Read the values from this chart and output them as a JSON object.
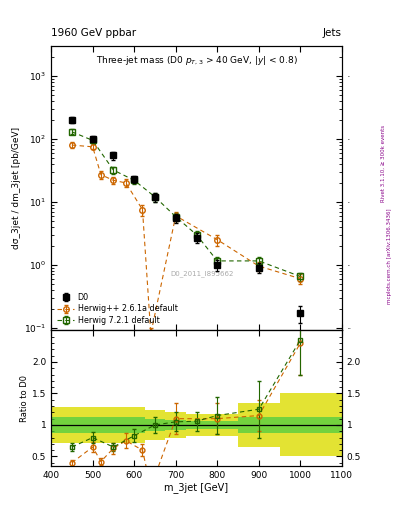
{
  "title_top": "1960 GeV ppbar",
  "title_top_right": "Jets",
  "plot_title": "Three-jet mass (D0 p_{T,3} > 40 GeV, |y| < 0.8)",
  "xlabel": "m_3jet [GeV]",
  "ylabel_main": "dσ_3jet / dm_3jet [pb/GeV]",
  "ylabel_ratio": "Ratio to D0",
  "watermark": "D0_2011_I895662",
  "right_label": "Rivet 3.1.10, ≥ 300k events",
  "right_label2": "mcplots.cern.ch [arXiv:1306.3436]",
  "d0_x": [
    450,
    500,
    550,
    600,
    650,
    700,
    750,
    800,
    900,
    1000
  ],
  "d0_y": [
    200,
    100,
    55,
    23,
    12,
    5.5,
    2.7,
    1.0,
    0.9,
    0.17
  ],
  "d0_yerr_lo": [
    20,
    10,
    8,
    3,
    2,
    0.9,
    0.5,
    0.2,
    0.15,
    0.05
  ],
  "d0_yerr_hi": [
    20,
    10,
    8,
    3,
    2,
    0.9,
    0.5,
    0.2,
    0.15,
    0.05
  ],
  "hw_x": [
    450,
    500,
    520,
    550,
    580,
    620,
    640,
    700,
    800,
    900,
    1000
  ],
  "hw_y": [
    80,
    75,
    27,
    22,
    20,
    7.5,
    0.08,
    6.0,
    2.5,
    0.95,
    0.6
  ],
  "hw_yerr_lo": [
    8,
    7,
    4,
    3,
    3,
    1.5,
    0.02,
    1.0,
    0.5,
    0.15,
    0.1
  ],
  "hw_yerr_hi": [
    8,
    7,
    4,
    3,
    3,
    1.5,
    0.02,
    1.0,
    0.5,
    0.15,
    0.1
  ],
  "hw7_x": [
    450,
    500,
    550,
    600,
    650,
    700,
    750,
    800,
    900,
    1000
  ],
  "hw7_y": [
    130,
    95,
    32,
    22,
    12,
    5.8,
    3.0,
    1.15,
    1.15,
    0.65
  ],
  "hw7_yerr_lo": [
    12,
    9,
    4,
    3,
    2,
    0.9,
    0.5,
    0.2,
    0.2,
    0.1
  ],
  "hw7_yerr_hi": [
    12,
    9,
    4,
    3,
    2,
    0.9,
    0.5,
    0.2,
    0.2,
    0.1
  ],
  "ratio_hw_x": [
    450,
    500,
    520,
    550,
    580,
    620,
    640,
    700,
    800,
    900,
    1000
  ],
  "ratio_hw_y": [
    0.4,
    0.65,
    0.42,
    0.63,
    0.75,
    0.6,
    0.007,
    1.1,
    1.1,
    1.15,
    2.3
  ],
  "ratio_hw_yerr_lo": [
    0.05,
    0.08,
    0.06,
    0.09,
    0.12,
    0.1,
    0.003,
    0.25,
    0.25,
    0.25,
    0.5
  ],
  "ratio_hw_yerr_hi": [
    0.05,
    0.08,
    0.06,
    0.09,
    0.12,
    0.1,
    0.003,
    0.25,
    0.25,
    0.25,
    0.5
  ],
  "ratio_hw7_x": [
    450,
    500,
    550,
    600,
    650,
    700,
    750,
    800,
    900,
    1000
  ],
  "ratio_hw7_y": [
    0.65,
    0.8,
    0.65,
    0.83,
    1.0,
    1.05,
    1.06,
    1.15,
    1.25,
    2.35
  ],
  "ratio_hw7_yerr_lo": [
    0.06,
    0.09,
    0.07,
    0.1,
    0.12,
    0.15,
    0.15,
    0.3,
    0.45,
    0.55
  ],
  "ratio_hw7_yerr_hi": [
    0.06,
    0.09,
    0.07,
    0.1,
    0.12,
    0.15,
    0.15,
    0.3,
    0.45,
    0.55
  ],
  "band_x_edges": [
    400,
    475,
    525,
    575,
    625,
    675,
    725,
    775,
    850,
    950,
    1100
  ],
  "band_green_lo": [
    0.88,
    0.88,
    0.88,
    0.88,
    0.9,
    0.92,
    0.93,
    0.93,
    0.88,
    0.88,
    0.88
  ],
  "band_green_hi": [
    1.12,
    1.12,
    1.12,
    1.12,
    1.1,
    1.08,
    1.07,
    1.07,
    1.12,
    1.12,
    1.12
  ],
  "band_yellow_lo": [
    0.72,
    0.72,
    0.72,
    0.72,
    0.76,
    0.8,
    0.82,
    0.82,
    0.65,
    0.5,
    0.5
  ],
  "band_yellow_hi": [
    1.28,
    1.28,
    1.28,
    1.28,
    1.24,
    1.2,
    1.18,
    1.18,
    1.35,
    1.5,
    1.5
  ],
  "color_d0": "#000000",
  "color_hw": "#cc6600",
  "color_hw7": "#226600",
  "color_band_green": "#44cc44",
  "color_band_yellow": "#dddd00",
  "xlim": [
    400,
    1100
  ],
  "ylim_main": [
    0.09,
    3000
  ],
  "ylim_ratio": [
    0.35,
    2.5
  ],
  "ratio_yticks": [
    0.5,
    1.0,
    1.5,
    2.0
  ]
}
